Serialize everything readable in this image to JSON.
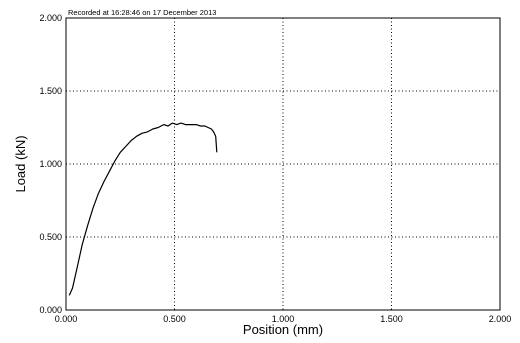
{
  "chart_data": {
    "type": "line",
    "annotation": "Recorded at 16:28:46 on 17 December 2013",
    "xlabel": "Position (mm)",
    "ylabel": "Load (kN)",
    "xlim": [
      0,
      2
    ],
    "ylim": [
      0,
      2
    ],
    "x_ticks": [
      0,
      0.5,
      1,
      1.5,
      2
    ],
    "x_tick_labels": [
      "0.000",
      "0.500",
      "1.000",
      "1.500",
      "2.000"
    ],
    "y_ticks": [
      0,
      0.5,
      1,
      1.5,
      2
    ],
    "y_tick_labels": [
      "0.000",
      "0.500",
      "1.000",
      "1.500",
      "2.000"
    ],
    "grid": true,
    "series": [
      {
        "color": "#000000",
        "x": [
          0.015,
          0.03,
          0.05,
          0.075,
          0.1,
          0.125,
          0.15,
          0.175,
          0.2,
          0.225,
          0.25,
          0.275,
          0.3,
          0.325,
          0.35,
          0.375,
          0.4,
          0.425,
          0.45,
          0.47,
          0.49,
          0.51,
          0.53,
          0.55,
          0.57,
          0.6,
          0.62,
          0.64,
          0.655,
          0.67,
          0.68,
          0.69,
          0.695
        ],
        "y": [
          0.1,
          0.15,
          0.28,
          0.45,
          0.58,
          0.7,
          0.8,
          0.88,
          0.95,
          1.02,
          1.08,
          1.12,
          1.16,
          1.19,
          1.21,
          1.22,
          1.24,
          1.25,
          1.27,
          1.26,
          1.28,
          1.27,
          1.28,
          1.27,
          1.27,
          1.27,
          1.26,
          1.26,
          1.25,
          1.24,
          1.22,
          1.19,
          1.08
        ]
      }
    ]
  }
}
